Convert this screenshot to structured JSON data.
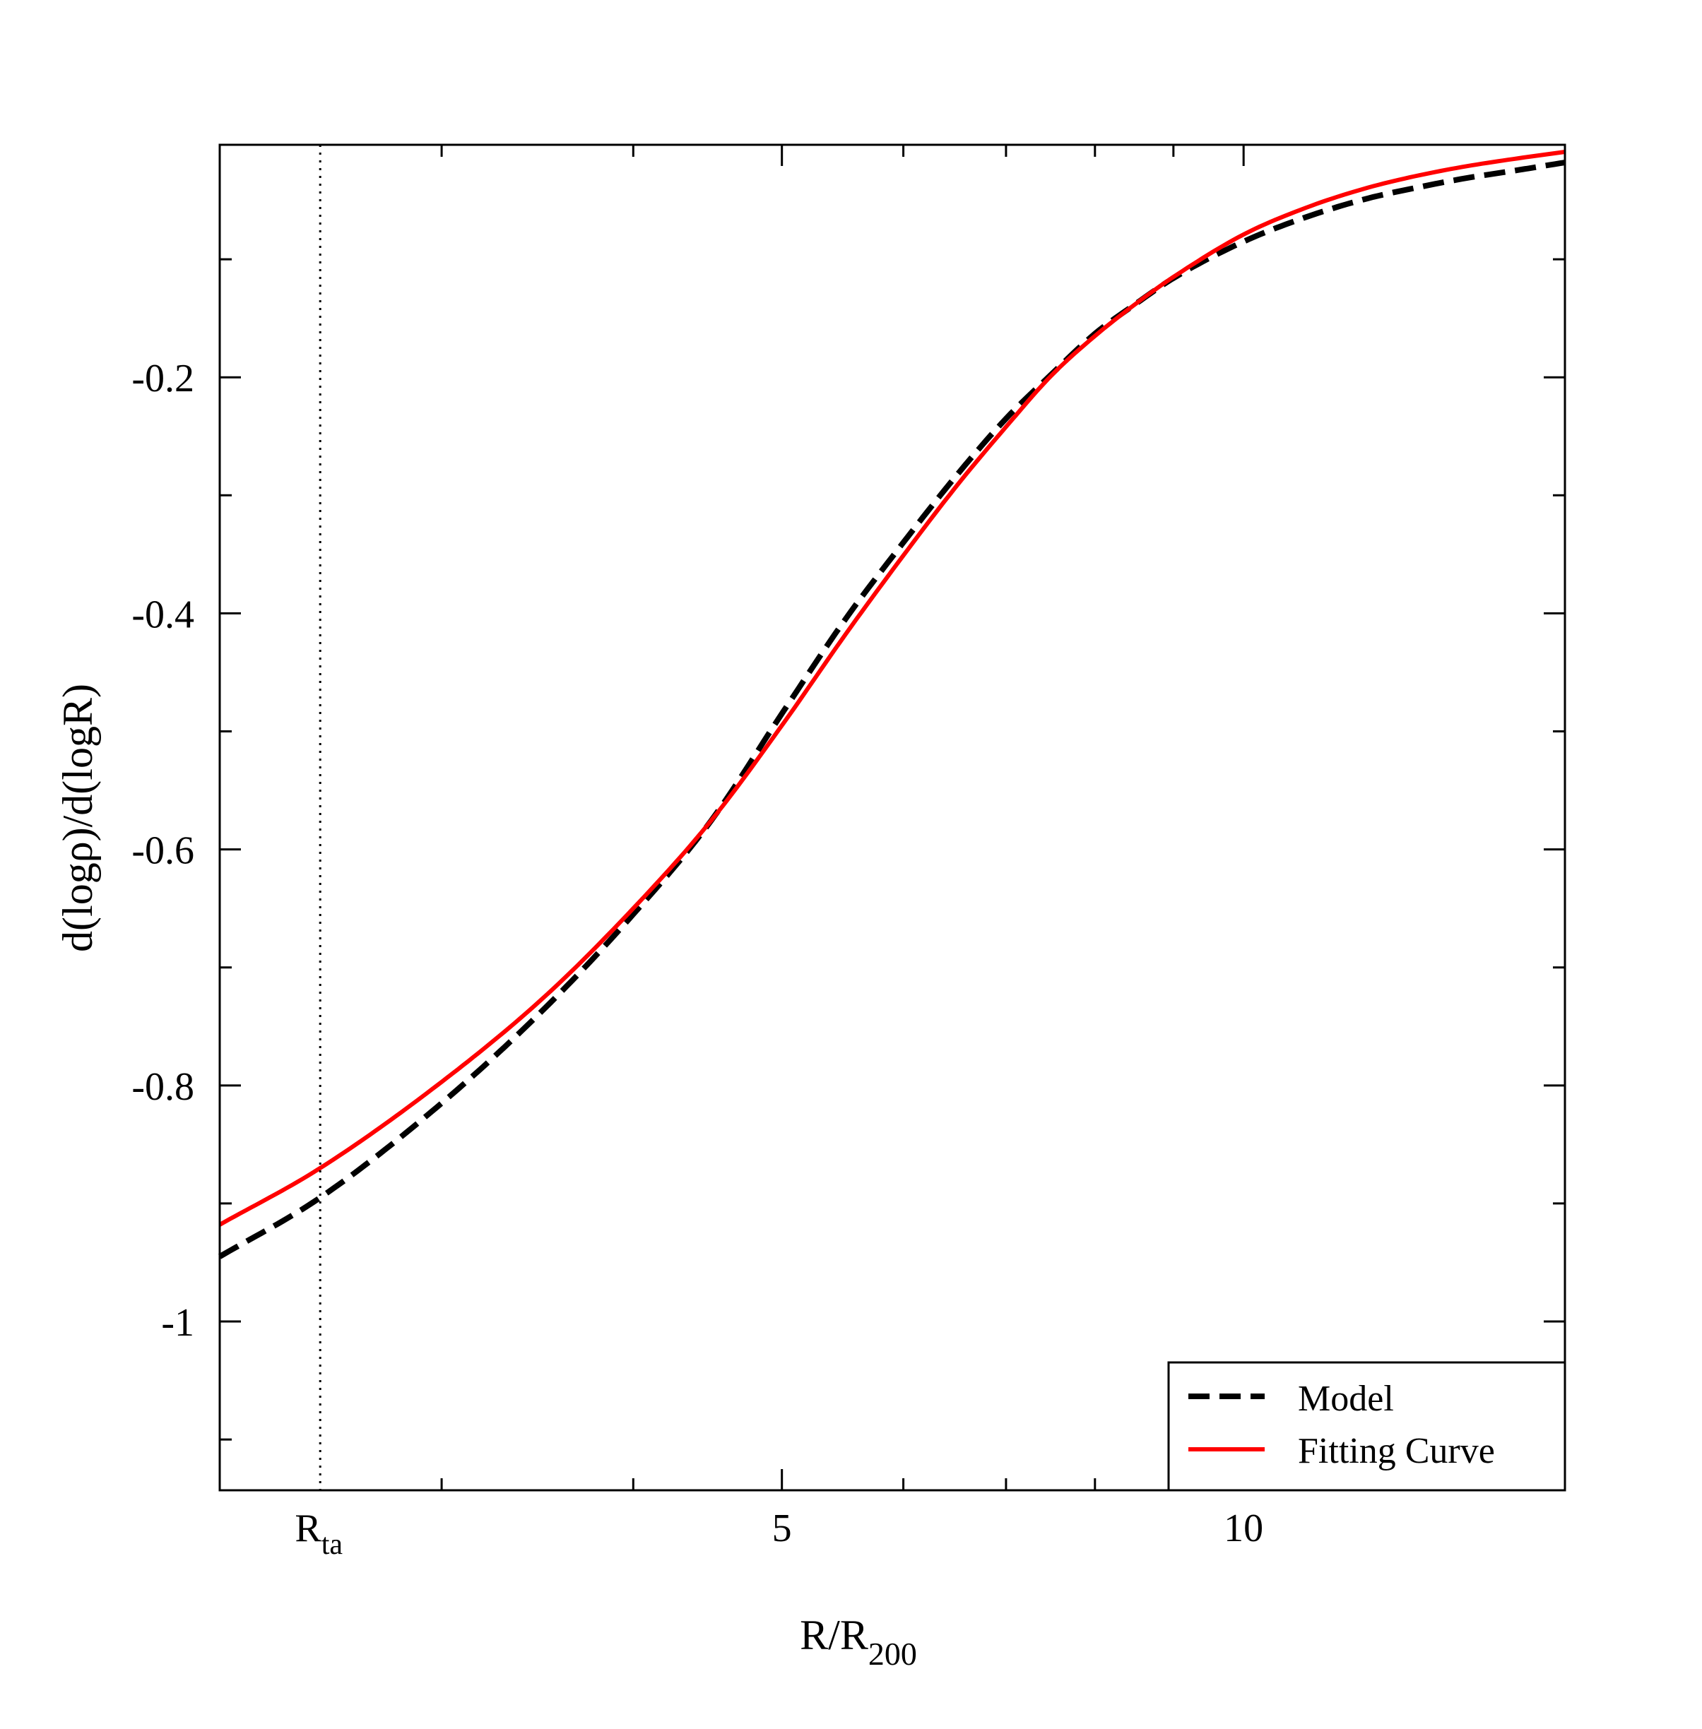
{
  "chart_data": {
    "type": "line",
    "title": "",
    "xlabel": {
      "main": "R/R",
      "sub": "200"
    },
    "ylabel": "d(logρ)/d(logR)",
    "xscale": "log",
    "xlim": [
      2.15,
      16.2
    ],
    "ylim": [
      -1.143,
      -0.003
    ],
    "grid": false,
    "x_ticks": [
      {
        "value": 5,
        "label": "5"
      },
      {
        "value": 10,
        "label": "10"
      }
    ],
    "x_minor_ticks": [
      3,
      4,
      6,
      7,
      8,
      9
    ],
    "y_ticks": [
      {
        "value": -0.2,
        "label": "-0.2"
      },
      {
        "value": -0.4,
        "label": "-0.4"
      },
      {
        "value": -0.6,
        "label": "-0.6"
      },
      {
        "value": -0.8,
        "label": "-0.8"
      },
      {
        "value": -1.0,
        "label": "-1"
      }
    ],
    "y_minor_ticks": [
      -0.1,
      -0.3,
      -0.5,
      -0.7,
      -0.9,
      -1.1
    ],
    "reference_line": {
      "x": 2.5,
      "label_main": "R",
      "label_sub": "ta",
      "style": "dotted"
    },
    "legend": {
      "position": "bottom-right"
    },
    "series": [
      {
        "name": "Model",
        "color": "#000000",
        "style": "dashed",
        "x": [
          2.15,
          2.5,
          3.0,
          3.5,
          4.0,
          4.5,
          5.0,
          5.5,
          6.0,
          6.5,
          7.0,
          7.5,
          8.0,
          8.5,
          9.0,
          10.0,
          11.0,
          12.0,
          13.0,
          14.0,
          15.0,
          16.2
        ],
        "y": [
          -0.945,
          -0.895,
          -0.815,
          -0.735,
          -0.655,
          -0.575,
          -0.485,
          -0.405,
          -0.34,
          -0.283,
          -0.235,
          -0.197,
          -0.163,
          -0.138,
          -0.116,
          -0.085,
          -0.064,
          -0.049,
          -0.039,
          -0.031,
          -0.025,
          -0.018
        ]
      },
      {
        "name": "Fitting Curve",
        "color": "#ff0000",
        "style": "solid",
        "x": [
          2.15,
          2.5,
          3.0,
          3.5,
          4.0,
          4.5,
          5.0,
          5.5,
          6.0,
          6.5,
          7.0,
          7.5,
          8.0,
          8.5,
          9.0,
          10.0,
          11.0,
          12.0,
          13.0,
          14.0,
          15.0,
          16.2
        ],
        "y": [
          -0.918,
          -0.87,
          -0.797,
          -0.725,
          -0.65,
          -0.575,
          -0.495,
          -0.418,
          -0.351,
          -0.292,
          -0.242,
          -0.198,
          -0.165,
          -0.138,
          -0.115,
          -0.079,
          -0.056,
          -0.04,
          -0.029,
          -0.021,
          -0.015,
          -0.009
        ]
      }
    ]
  }
}
